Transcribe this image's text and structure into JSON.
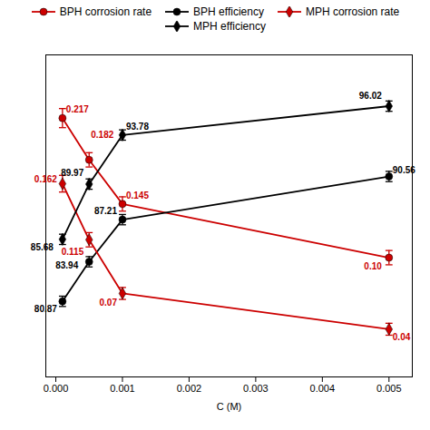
{
  "chart_data": {
    "type": "line",
    "xlabel": "C (M)",
    "x": [
      0.0001,
      0.0005,
      0.001,
      0.005
    ],
    "xlim": [
      -0.00015,
      0.00535
    ],
    "xticks": [
      {
        "value": 0,
        "label": "0.000"
      },
      0.001,
      0.002,
      0.003,
      0.004,
      0.005
    ],
    "ylim": [
      0.0,
      0.27
    ],
    "y2lim": [
      75.0,
      100.0
    ],
    "tick_labels": "x",
    "legend": "top",
    "data_labels": true,
    "series": [
      {
        "name": "BPH corrosion rate",
        "color": "#CC0000",
        "marker": "circle",
        "values": [
          0.217,
          0.182,
          0.145,
          0.1
        ],
        "error": [
          0.008,
          0.006,
          0.006,
          0.006
        ],
        "value_labels": [
          "0.217",
          "0.182",
          "0.145",
          "0.10"
        ]
      },
      {
        "name": "BPH efficiency",
        "color": "#000000",
        "marker": "circle",
        "axis": "y2",
        "values": [
          80.87,
          83.94,
          87.21,
          90.56
        ],
        "error": [
          0.4,
          0.4,
          0.4,
          0.4
        ]
      },
      {
        "name": "MPH corrosion rate",
        "color": "#CC0000",
        "marker": "diamond",
        "values": [
          0.162,
          0.115,
          0.07,
          0.04
        ],
        "error": [
          0.007,
          0.006,
          0.005,
          0.005
        ]
      },
      {
        "name": "MPH efficiency",
        "color": "#000000",
        "marker": "diamond",
        "axis": "y2",
        "values": [
          85.68,
          89.97,
          93.78,
          96.02
        ],
        "error": [
          0.4,
          0.4,
          0.4,
          0.4
        ]
      }
    ]
  }
}
